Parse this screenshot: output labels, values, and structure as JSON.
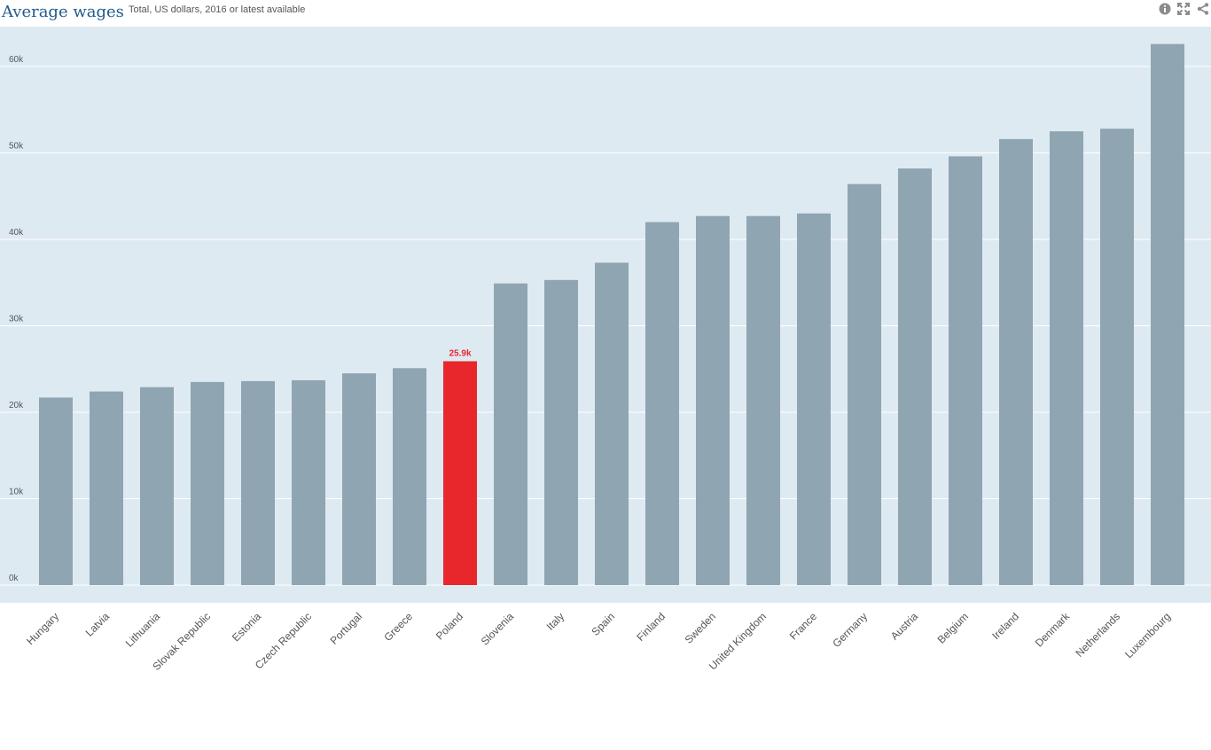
{
  "header": {
    "title": "Average wages",
    "subtitle": "Total, US dollars, 2016 or latest available"
  },
  "toolbar": {
    "icons": [
      "info-icon",
      "fullscreen-icon",
      "share-icon"
    ]
  },
  "colors": {
    "plot_bg": "#deeaf2",
    "bar": "#8fa5b2",
    "highlight": "#e8272c",
    "grid": "#ffffff",
    "label": "#555555"
  },
  "chart_data": {
    "type": "bar",
    "title": "Average wages",
    "subtitle": "Total, US dollars, 2016 or latest available",
    "xlabel": "",
    "ylabel": "",
    "ylim": [
      0,
      63000
    ],
    "yticks": [
      0,
      10000,
      20000,
      30000,
      40000,
      50000,
      60000
    ],
    "ytick_labels": [
      "0k",
      "10k",
      "20k",
      "30k",
      "40k",
      "50k",
      "60k"
    ],
    "grid": true,
    "categories": [
      "Hungary",
      "Latvia",
      "Lithuania",
      "Slovak Republic",
      "Estonia",
      "Czech Republic",
      "Portugal",
      "Greece",
      "Poland",
      "Slovenia",
      "Italy",
      "Spain",
      "Finland",
      "Sweden",
      "United Kingdom",
      "France",
      "Germany",
      "Austria",
      "Belgium",
      "Ireland",
      "Denmark",
      "Netherlands",
      "Luxembourg"
    ],
    "values": [
      21700,
      22400,
      22900,
      23500,
      23600,
      23700,
      24500,
      25100,
      25900,
      34900,
      35300,
      37300,
      42000,
      42700,
      42700,
      43000,
      46400,
      48200,
      49600,
      51600,
      52500,
      52800,
      62600
    ],
    "highlight": "Poland",
    "highlight_label": "25.9k"
  }
}
